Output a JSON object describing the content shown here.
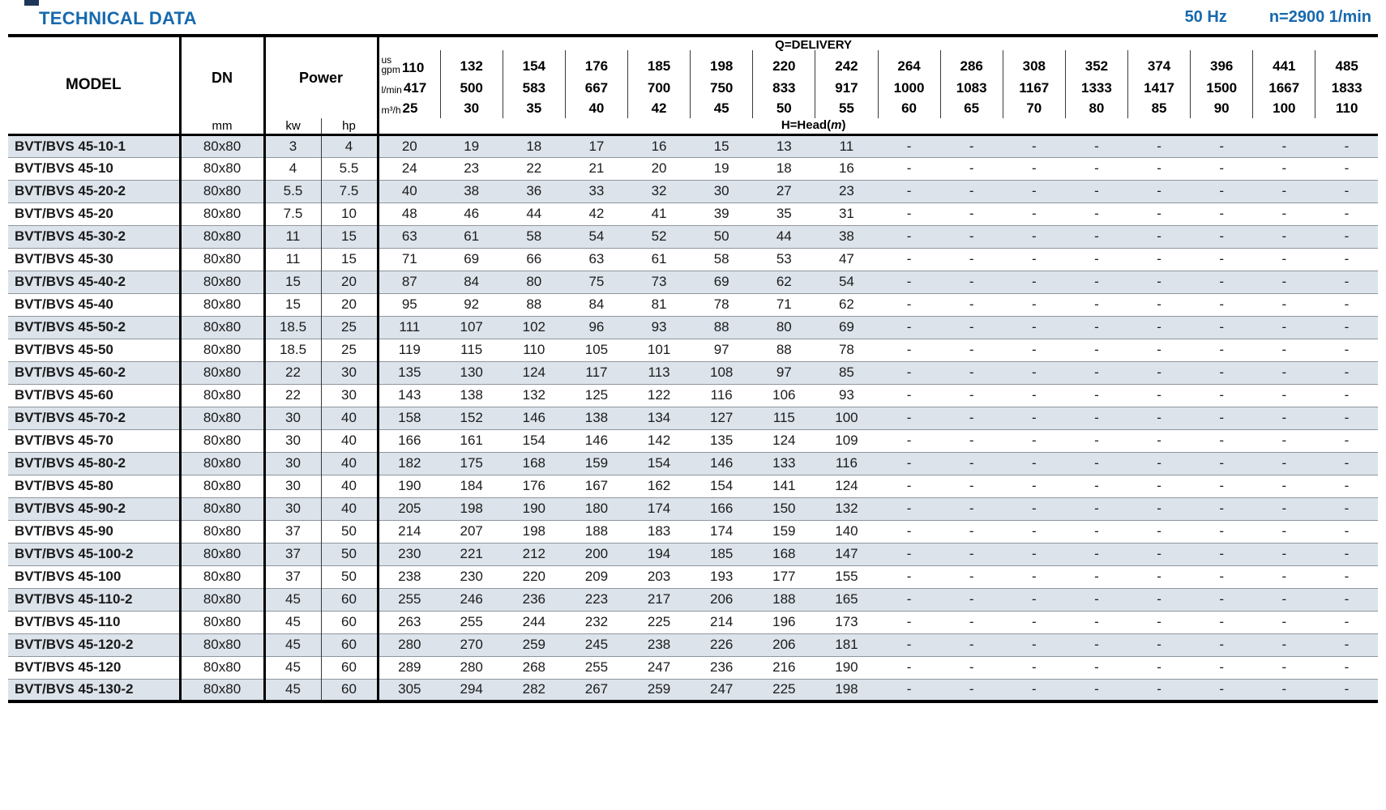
{
  "title": "TECHNICAL DATA",
  "frequency": "50 Hz",
  "speed": "n=2900 1/min",
  "table": {
    "model_header": "MODEL",
    "dn_header": "DN",
    "dn_unit": "mm",
    "power_header": "Power",
    "power_unit_kw": "kw",
    "power_unit_hp": "hp",
    "delivery_header": "Q=DELIVERY",
    "head_prefix": "H=Head(",
    "head_m": "m",
    "head_suffix": ")",
    "unit_rows": [
      {
        "label_lines": [
          "us",
          "gpm"
        ],
        "values": [
          "110",
          "132",
          "154",
          "176",
          "185",
          "198",
          "220",
          "242",
          "264",
          "286",
          "308",
          "352",
          "374",
          "396",
          "441",
          "485"
        ]
      },
      {
        "label_lines": [
          "l/min"
        ],
        "values": [
          "417",
          "500",
          "583",
          "667",
          "700",
          "750",
          "833",
          "917",
          "1000",
          "1083",
          "1167",
          "1333",
          "1417",
          "1500",
          "1667",
          "1833"
        ]
      },
      {
        "label_lines": [
          "m³/h"
        ],
        "values": [
          "25",
          "30",
          "35",
          "40",
          "42",
          "45",
          "50",
          "55",
          "60",
          "65",
          "70",
          "80",
          "85",
          "90",
          "100",
          "110"
        ]
      }
    ],
    "rows": [
      {
        "model": "BVT/BVS 45-10-1",
        "dn": "80x80",
        "kw": "3",
        "hp": "4",
        "heads": [
          "20",
          "19",
          "18",
          "17",
          "16",
          "15",
          "13",
          "11",
          "-",
          "-",
          "-",
          "-",
          "-",
          "-",
          "-",
          "-"
        ]
      },
      {
        "model": "BVT/BVS 45-10",
        "dn": "80x80",
        "kw": "4",
        "hp": "5.5",
        "heads": [
          "24",
          "23",
          "22",
          "21",
          "20",
          "19",
          "18",
          "16",
          "-",
          "-",
          "-",
          "-",
          "-",
          "-",
          "-",
          "-"
        ]
      },
      {
        "model": "BVT/BVS 45-20-2",
        "dn": "80x80",
        "kw": "5.5",
        "hp": "7.5",
        "heads": [
          "40",
          "38",
          "36",
          "33",
          "32",
          "30",
          "27",
          "23",
          "-",
          "-",
          "-",
          "-",
          "-",
          "-",
          "-",
          "-"
        ]
      },
      {
        "model": "BVT/BVS 45-20",
        "dn": "80x80",
        "kw": "7.5",
        "hp": "10",
        "heads": [
          "48",
          "46",
          "44",
          "42",
          "41",
          "39",
          "35",
          "31",
          "-",
          "-",
          "-",
          "-",
          "-",
          "-",
          "-",
          "-"
        ]
      },
      {
        "model": "BVT/BVS 45-30-2",
        "dn": "80x80",
        "kw": "11",
        "hp": "15",
        "heads": [
          "63",
          "61",
          "58",
          "54",
          "52",
          "50",
          "44",
          "38",
          "-",
          "-",
          "-",
          "-",
          "-",
          "-",
          "-",
          "-"
        ]
      },
      {
        "model": "BVT/BVS 45-30",
        "dn": "80x80",
        "kw": "11",
        "hp": "15",
        "heads": [
          "71",
          "69",
          "66",
          "63",
          "61",
          "58",
          "53",
          "47",
          "-",
          "-",
          "-",
          "-",
          "-",
          "-",
          "-",
          "-"
        ]
      },
      {
        "model": "BVT/BVS 45-40-2",
        "dn": "80x80",
        "kw": "15",
        "hp": "20",
        "heads": [
          "87",
          "84",
          "80",
          "75",
          "73",
          "69",
          "62",
          "54",
          "-",
          "-",
          "-",
          "-",
          "-",
          "-",
          "-",
          "-"
        ]
      },
      {
        "model": "BVT/BVS 45-40",
        "dn": "80x80",
        "kw": "15",
        "hp": "20",
        "heads": [
          "95",
          "92",
          "88",
          "84",
          "81",
          "78",
          "71",
          "62",
          "-",
          "-",
          "-",
          "-",
          "-",
          "-",
          "-",
          "-"
        ]
      },
      {
        "model": "BVT/BVS 45-50-2",
        "dn": "80x80",
        "kw": "18.5",
        "hp": "25",
        "heads": [
          "111",
          "107",
          "102",
          "96",
          "93",
          "88",
          "80",
          "69",
          "-",
          "-",
          "-",
          "-",
          "-",
          "-",
          "-",
          "-"
        ]
      },
      {
        "model": "BVT/BVS 45-50",
        "dn": "80x80",
        "kw": "18.5",
        "hp": "25",
        "heads": [
          "119",
          "115",
          "110",
          "105",
          "101",
          "97",
          "88",
          "78",
          "-",
          "-",
          "-",
          "-",
          "-",
          "-",
          "-",
          "-"
        ]
      },
      {
        "model": "BVT/BVS 45-60-2",
        "dn": "80x80",
        "kw": "22",
        "hp": "30",
        "heads": [
          "135",
          "130",
          "124",
          "117",
          "113",
          "108",
          "97",
          "85",
          "-",
          "-",
          "-",
          "-",
          "-",
          "-",
          "-",
          "-"
        ]
      },
      {
        "model": "BVT/BVS 45-60",
        "dn": "80x80",
        "kw": "22",
        "hp": "30",
        "heads": [
          "143",
          "138",
          "132",
          "125",
          "122",
          "116",
          "106",
          "93",
          "-",
          "-",
          "-",
          "-",
          "-",
          "-",
          "-",
          "-"
        ]
      },
      {
        "model": "BVT/BVS 45-70-2",
        "dn": "80x80",
        "kw": "30",
        "hp": "40",
        "heads": [
          "158",
          "152",
          "146",
          "138",
          "134",
          "127",
          "115",
          "100",
          "-",
          "-",
          "-",
          "-",
          "-",
          "-",
          "-",
          "-"
        ]
      },
      {
        "model": "BVT/BVS 45-70",
        "dn": "80x80",
        "kw": "30",
        "hp": "40",
        "heads": [
          "166",
          "161",
          "154",
          "146",
          "142",
          "135",
          "124",
          "109",
          "-",
          "-",
          "-",
          "-",
          "-",
          "-",
          "-",
          "-"
        ]
      },
      {
        "model": "BVT/BVS 45-80-2",
        "dn": "80x80",
        "kw": "30",
        "hp": "40",
        "heads": [
          "182",
          "175",
          "168",
          "159",
          "154",
          "146",
          "133",
          "116",
          "-",
          "-",
          "-",
          "-",
          "-",
          "-",
          "-",
          "-"
        ]
      },
      {
        "model": "BVT/BVS 45-80",
        "dn": "80x80",
        "kw": "30",
        "hp": "40",
        "heads": [
          "190",
          "184",
          "176",
          "167",
          "162",
          "154",
          "141",
          "124",
          "-",
          "-",
          "-",
          "-",
          "-",
          "-",
          "-",
          "-"
        ]
      },
      {
        "model": "BVT/BVS 45-90-2",
        "dn": "80x80",
        "kw": "30",
        "hp": "40",
        "heads": [
          "205",
          "198",
          "190",
          "180",
          "174",
          "166",
          "150",
          "132",
          "-",
          "-",
          "-",
          "-",
          "-",
          "-",
          "-",
          "-"
        ]
      },
      {
        "model": "BVT/BVS 45-90",
        "dn": "80x80",
        "kw": "37",
        "hp": "50",
        "heads": [
          "214",
          "207",
          "198",
          "188",
          "183",
          "174",
          "159",
          "140",
          "-",
          "-",
          "-",
          "-",
          "-",
          "-",
          "-",
          "-"
        ]
      },
      {
        "model": "BVT/BVS 45-100-2",
        "dn": "80x80",
        "kw": "37",
        "hp": "50",
        "heads": [
          "230",
          "221",
          "212",
          "200",
          "194",
          "185",
          "168",
          "147",
          "-",
          "-",
          "-",
          "-",
          "-",
          "-",
          "-",
          "-"
        ]
      },
      {
        "model": "BVT/BVS 45-100",
        "dn": "80x80",
        "kw": "37",
        "hp": "50",
        "heads": [
          "238",
          "230",
          "220",
          "209",
          "203",
          "193",
          "177",
          "155",
          "-",
          "-",
          "-",
          "-",
          "-",
          "-",
          "-",
          "-"
        ]
      },
      {
        "model": "BVT/BVS 45-110-2",
        "dn": "80x80",
        "kw": "45",
        "hp": "60",
        "heads": [
          "255",
          "246",
          "236",
          "223",
          "217",
          "206",
          "188",
          "165",
          "-",
          "-",
          "-",
          "-",
          "-",
          "-",
          "-",
          "-"
        ]
      },
      {
        "model": "BVT/BVS 45-110",
        "dn": "80x80",
        "kw": "45",
        "hp": "60",
        "heads": [
          "263",
          "255",
          "244",
          "232",
          "225",
          "214",
          "196",
          "173",
          "-",
          "-",
          "-",
          "-",
          "-",
          "-",
          "-",
          "-"
        ]
      },
      {
        "model": "BVT/BVS 45-120-2",
        "dn": "80x80",
        "kw": "45",
        "hp": "60",
        "heads": [
          "280",
          "270",
          "259",
          "245",
          "238",
          "226",
          "206",
          "181",
          "-",
          "-",
          "-",
          "-",
          "-",
          "-",
          "-",
          "-"
        ]
      },
      {
        "model": "BVT/BVS 45-120",
        "dn": "80x80",
        "kw": "45",
        "hp": "60",
        "heads": [
          "289",
          "280",
          "268",
          "255",
          "247",
          "236",
          "216",
          "190",
          "-",
          "-",
          "-",
          "-",
          "-",
          "-",
          "-",
          "-"
        ]
      },
      {
        "model": "BVT/BVS 45-130-2",
        "dn": "80x80",
        "kw": "45",
        "hp": "60",
        "heads": [
          "305",
          "294",
          "282",
          "267",
          "259",
          "247",
          "225",
          "198",
          "-",
          "-",
          "-",
          "-",
          "-",
          "-",
          "-",
          "-"
        ]
      }
    ]
  }
}
